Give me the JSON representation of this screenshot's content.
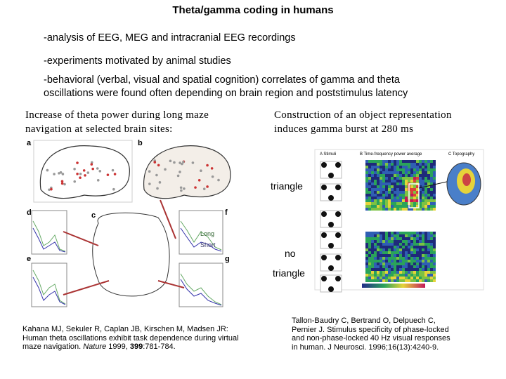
{
  "title": "Theta/gamma coding in humans",
  "bullets": [
    [
      "-analysis of EEG, MEG and intracranial EEG recordings"
    ],
    [
      "-experiments motivated by animal studies"
    ],
    [
      "-behavioral (verbal, visual and spatial cognition) correlates of gamma and theta",
      "oscillations were found often depending on brain region and poststimulus latency"
    ]
  ],
  "left": {
    "caption": [
      "Increase of theta power during long maze",
      "navigation at selected brain sites:"
    ],
    "panels": [
      "a",
      "b",
      "c",
      "d",
      "e",
      "f",
      "g"
    ],
    "legend": [
      "Long",
      "Short"
    ],
    "reference": [
      "Kahana MJ, Sekuler R, Caplan JB, Kirschen M, Madsen JR:",
      "Human theta oscillations exhibit task dependence during virtual",
      "maze navigation. ",
      "Nature",
      " 1999, ",
      "399",
      ":781-784."
    ]
  },
  "right": {
    "caption": [
      "Construction of an object representation",
      "induces gamma burst at 280 ms"
    ],
    "panels": [
      "A  Stimuli",
      "B  Time-frequency power average",
      "C  Topography"
    ],
    "labels": [
      "triangle",
      "no",
      "triangle"
    ],
    "reference": [
      "Tallon-Baudry C, Bertrand O, Delpuech C,",
      "Pernier J. Stimulus specificity of phase-locked",
      "and non-phase-locked 40 Hz visual responses",
      "in human. J Neurosci. 1996;16(13):4240-9."
    ]
  }
}
